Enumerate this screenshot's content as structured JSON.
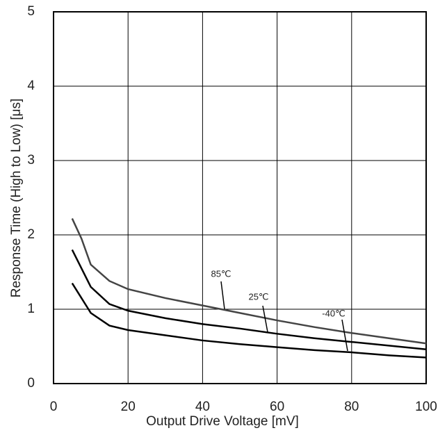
{
  "chart_data": {
    "type": "line",
    "x_label": "Output Drive Voltage [mV]",
    "y_label": "Response Time (High to Low) [μs]",
    "x": [
      5,
      7.5,
      10,
      15,
      20,
      30,
      40,
      50,
      60,
      70,
      80,
      90,
      100
    ],
    "series": [
      {
        "name": "85℃",
        "color": "#444444",
        "values": [
          2.22,
          1.95,
          1.6,
          1.38,
          1.27,
          1.15,
          1.05,
          0.95,
          0.85,
          0.76,
          0.68,
          0.61,
          0.54
        ]
      },
      {
        "name": "25℃",
        "color": "#000000",
        "values": [
          1.8,
          1.55,
          1.3,
          1.07,
          0.98,
          0.88,
          0.8,
          0.74,
          0.67,
          0.61,
          0.56,
          0.51,
          0.46
        ]
      },
      {
        "name": "-40℃",
        "color": "#000000",
        "values": [
          1.35,
          1.15,
          0.95,
          0.78,
          0.72,
          0.65,
          0.58,
          0.53,
          0.49,
          0.45,
          0.42,
          0.38,
          0.35
        ]
      }
    ],
    "xlim": [
      0,
      100
    ],
    "xticks": [
      0,
      20,
      40,
      60,
      80,
      100
    ],
    "ylim": [
      0,
      5
    ],
    "yticks": [
      0,
      1,
      2,
      3,
      4,
      5
    ],
    "grid": true
  }
}
